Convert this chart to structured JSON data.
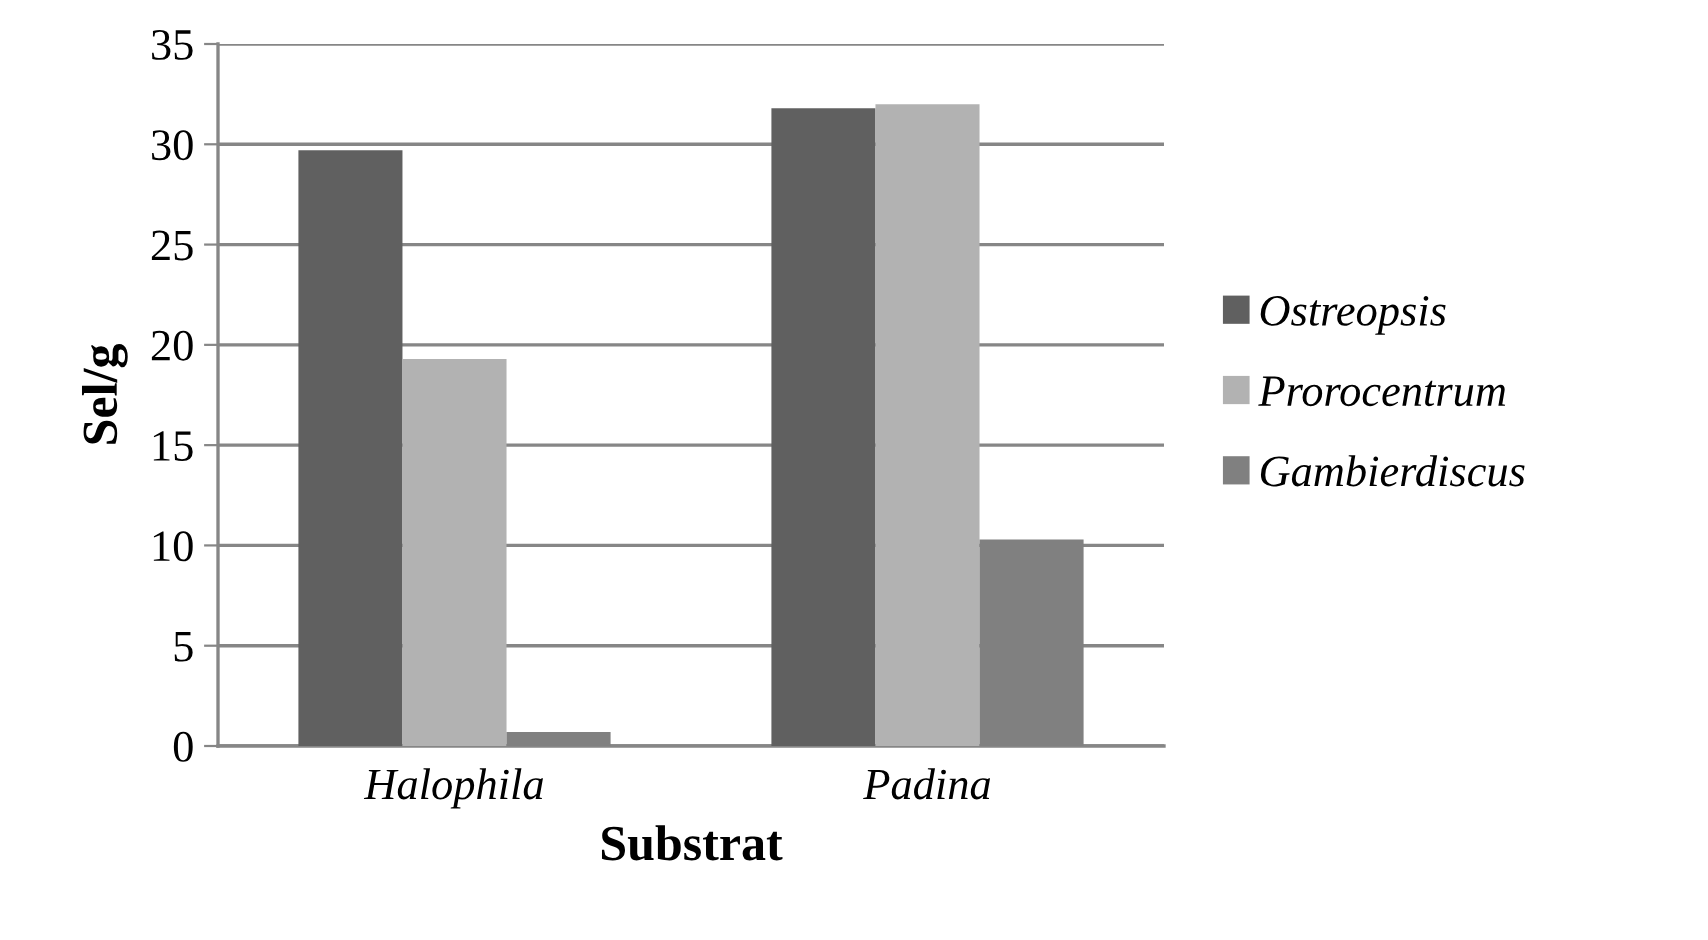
{
  "chart_data": {
    "type": "bar",
    "xlabel": "Substrat",
    "ylabel": "Sel/g",
    "categories": [
      "Halophila",
      "Padina"
    ],
    "series": [
      {
        "name": "Ostreopsis",
        "color": "#606060",
        "values": [
          29.7,
          31.8
        ]
      },
      {
        "name": "Prorocentrum",
        "color": "#b2b2b2",
        "values": [
          19.3,
          32.0
        ]
      },
      {
        "name": "Gambierdiscus",
        "color": "#808080",
        "values": [
          0.7,
          10.3
        ]
      }
    ],
    "ylim": [
      0,
      35
    ],
    "yticks": [
      0,
      5,
      10,
      15,
      20,
      25,
      30,
      35
    ],
    "grid": "y",
    "legend": "right"
  }
}
